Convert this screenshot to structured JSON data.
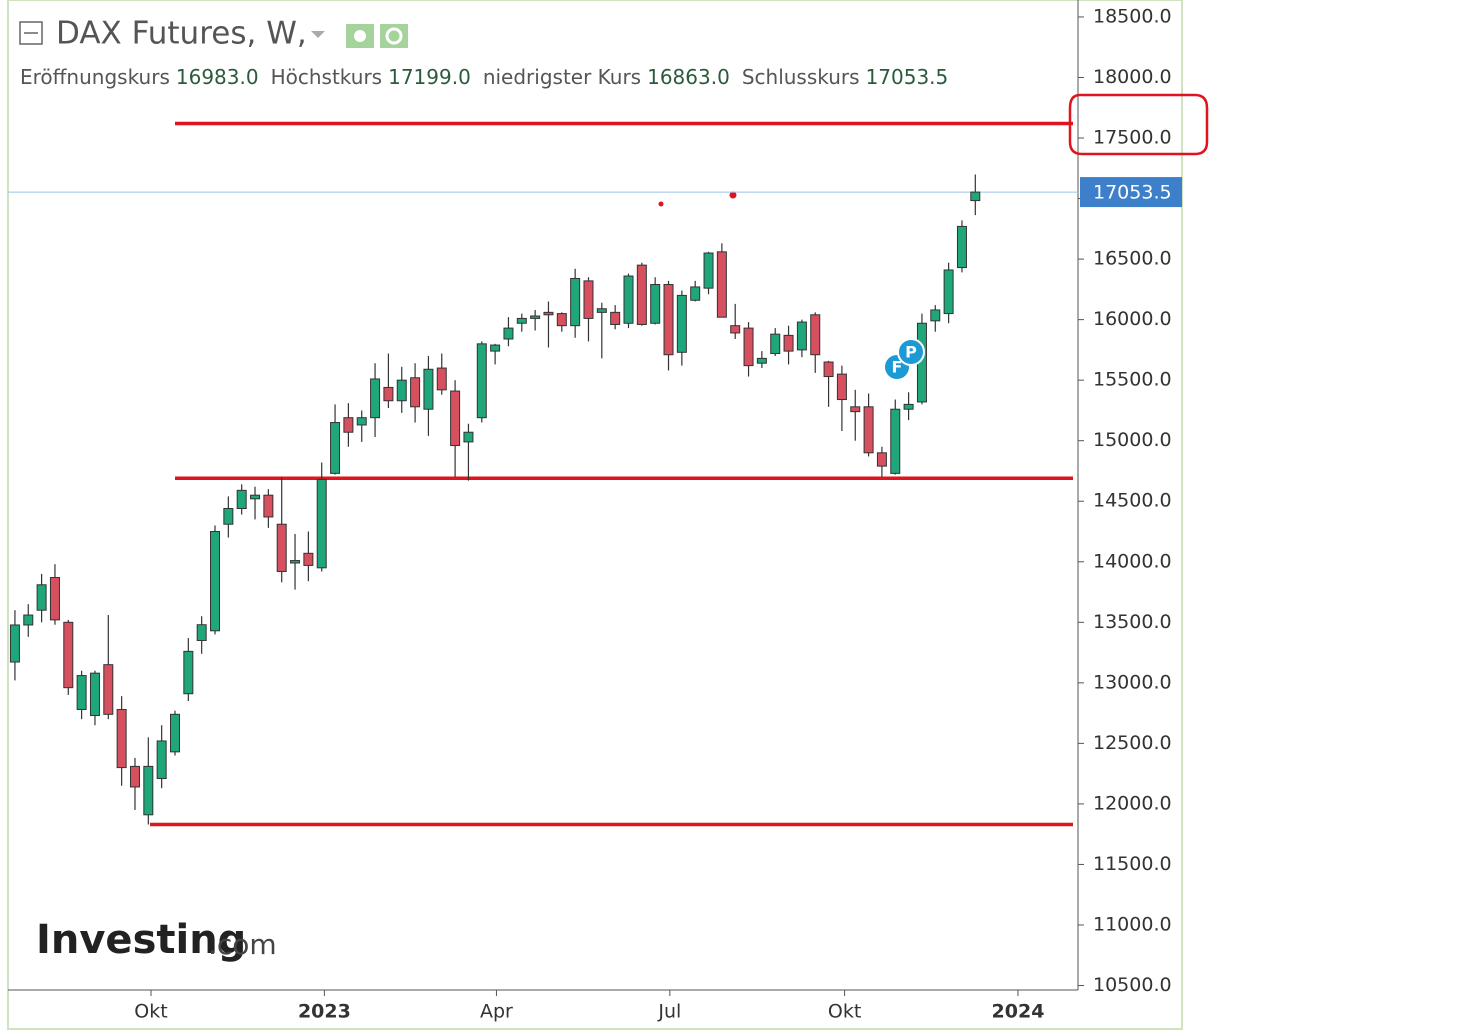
{
  "chart_data": {
    "type": "candlestick",
    "title": "DAX Futures, W,",
    "ohlc_legend": [
      {
        "label": "Eröffnungskurs",
        "value": "16983.0"
      },
      {
        "label": "Höchstkurs",
        "value": "17199.0"
      },
      {
        "label": "niedrigster Kurs",
        "value": "16863.0"
      },
      {
        "label": "Schlusskurs",
        "value": "17053.5"
      }
    ],
    "categories": [
      null,
      null,
      null,
      null,
      null,
      null,
      null,
      null,
      null,
      null,
      null,
      null,
      null,
      null,
      null,
      null,
      null,
      null,
      null,
      null,
      null,
      null,
      null,
      null,
      null,
      null,
      null,
      null,
      null,
      null,
      null,
      null,
      null,
      null,
      null,
      null,
      null,
      null,
      null,
      null,
      null,
      null,
      null,
      null,
      null,
      null,
      null,
      null,
      null,
      null,
      null,
      null,
      null,
      null,
      null,
      null,
      null,
      null,
      null,
      null,
      null,
      null,
      null,
      null,
      null,
      null,
      null,
      null,
      null,
      null,
      null,
      null,
      null
    ],
    "open": [
      13172,
      13478,
      13600,
      13870,
      13500,
      12780,
      12730,
      13150,
      12780,
      12310,
      11910,
      12210,
      12430,
      12910,
      13350,
      13430,
      14310,
      14440,
      14520,
      14550,
      14310,
      13990,
      14070,
      13950,
      14730,
      15190,
      15130,
      15190,
      15440,
      15330,
      15520,
      15260,
      15600,
      15410,
      14990,
      15190,
      15740,
      15840,
      15970,
      16010,
      16060,
      16050,
      15950,
      16320,
      16060,
      16060,
      15970,
      16450,
      15970,
      16290,
      15730,
      16160,
      16260,
      16560,
      15950,
      15930,
      15640,
      15720,
      15870,
      15750,
      16040,
      15650,
      15550,
      15280,
      15280,
      14900,
      14730,
      15260,
      15320,
      15990,
      16050,
      16430,
      16983
    ],
    "high": [
      13600,
      13650,
      13900,
      13980,
      13520,
      13100,
      13100,
      13560,
      12890,
      12380,
      12550,
      12650,
      12770,
      13370,
      13550,
      14300,
      14540,
      14640,
      14620,
      14600,
      14700,
      14230,
      14250,
      14820,
      15300,
      15310,
      15250,
      15640,
      15720,
      15610,
      15640,
      15700,
      15720,
      15500,
      15140,
      15820,
      15800,
      16020,
      16050,
      16080,
      16150,
      16060,
      16420,
      16350,
      16140,
      16120,
      16380,
      16470,
      16350,
      16320,
      16240,
      16320,
      16560,
      16630,
      16130,
      15980,
      15740,
      15930,
      15950,
      16000,
      16060,
      15660,
      15620,
      15420,
      15390,
      14950,
      15340,
      15400,
      16050,
      16120,
      16470,
      16820,
      17199
    ],
    "low": [
      13020,
      13380,
      13500,
      13480,
      12900,
      12700,
      12650,
      12700,
      12150,
      11950,
      11830,
      12130,
      12400,
      12850,
      13240,
      13400,
      14200,
      14390,
      14350,
      14280,
      13830,
      13770,
      13840,
      13920,
      14720,
      14950,
      14990,
      15030,
      15270,
      15230,
      15150,
      15040,
      15380,
      14700,
      14670,
      15150,
      15630,
      15780,
      15900,
      15910,
      15770,
      15900,
      15850,
      15820,
      15680,
      15920,
      15930,
      15950,
      15960,
      15580,
      15620,
      16150,
      16210,
      16020,
      15840,
      15530,
      15600,
      15700,
      15630,
      15690,
      15560,
      15280,
      15080,
      15000,
      14870,
      14700,
      14720,
      15170,
      15300,
      15900,
      15970,
      16390,
      16863
    ],
    "close": [
      13478,
      13560,
      13810,
      13520,
      12960,
      13060,
      13080,
      12740,
      12300,
      12140,
      12310,
      12520,
      12740,
      13260,
      13480,
      14250,
      14440,
      14590,
      14550,
      14370,
      13920,
      14010,
      13970,
      14680,
      15150,
      15070,
      15190,
      15510,
      15330,
      15500,
      15280,
      15590,
      15420,
      14960,
      15070,
      15800,
      15790,
      15930,
      16010,
      16030,
      16040,
      15950,
      16340,
      16010,
      16090,
      15960,
      16360,
      15960,
      16290,
      15710,
      16200,
      16270,
      16550,
      16020,
      15890,
      15620,
      15680,
      15880,
      15740,
      15980,
      15710,
      15530,
      15340,
      15240,
      14900,
      14790,
      15260,
      15300,
      15970,
      16080,
      16410,
      16770,
      17053.5
    ],
    "up_color": "#1fa67a",
    "down_color": "#d6505f",
    "last_price_color": "#3d7fc8",
    "horizontal_lines": {
      "color": "#e0141e",
      "values": [
        17620,
        14690,
        11830
      ]
    },
    "ylim": [
      10463,
      18640
    ],
    "yticks": [
      {
        "value": 10500,
        "label": "10500.0"
      },
      {
        "value": 11000,
        "label": "11000.0"
      },
      {
        "value": 11500,
        "label": "11500.0"
      },
      {
        "value": 12000,
        "label": "12000.0"
      },
      {
        "value": 12500,
        "label": "12500.0"
      },
      {
        "value": 13000,
        "label": "13000.0"
      },
      {
        "value": 13500,
        "label": "13500.0"
      },
      {
        "value": 14000,
        "label": "14000.0"
      },
      {
        "value": 14500,
        "label": "14500.0"
      },
      {
        "value": 15000,
        "label": "15000.0"
      },
      {
        "value": 15500,
        "label": "15500.0"
      },
      {
        "value": 16000,
        "label": "16000.0"
      },
      {
        "value": 16500,
        "label": "16500.0"
      },
      {
        "value": 17000,
        "label": "17000.0"
      },
      {
        "value": 17500,
        "label": "17500.0"
      },
      {
        "value": 18000,
        "label": "18000.0"
      },
      {
        "value": 18500,
        "label": "18500.0"
      }
    ],
    "xlim": [
      -0.52,
      79.7
    ],
    "xticks": [
      {
        "value": 10.2,
        "label": "Okt"
      },
      {
        "value": 23.2,
        "label": "2023"
      },
      {
        "value": 36.1,
        "label": "Apr"
      },
      {
        "value": 49.1,
        "label": "Jul"
      },
      {
        "value": 62.2,
        "label": "Okt"
      },
      {
        "value": 75.2,
        "label": "2024"
      }
    ],
    "event_markers": [
      "F",
      "P"
    ],
    "logo": {
      "name": "Investing",
      "suffix": ".com"
    }
  }
}
